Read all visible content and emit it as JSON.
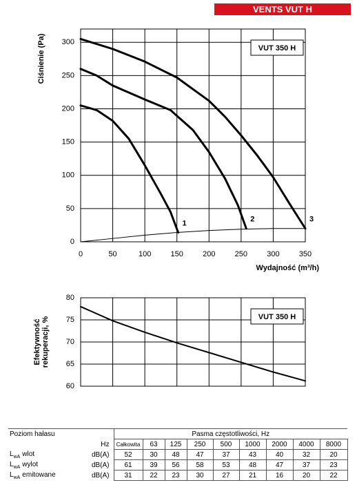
{
  "header": {
    "title": "VENTS VUT H"
  },
  "chart_data": [
    {
      "type": "line",
      "annotation": "VUT 350 H",
      "xlabel": "Wydajność (m³/h)",
      "ylabel": "Ciśnienie (Pa)",
      "xlim": [
        0,
        350
      ],
      "ylim": [
        0,
        320
      ],
      "xticks": [
        0,
        50,
        100,
        150,
        200,
        250,
        300,
        350
      ],
      "yticks": [
        0,
        50,
        100,
        150,
        200,
        250,
        300
      ],
      "grid": true,
      "show_x_tick_labels": true,
      "series": [
        {
          "name": "1",
          "color": "#000000",
          "linewidth": 3,
          "x": [
            0,
            25,
            50,
            75,
            100,
            125,
            140,
            152
          ],
          "values": [
            205,
            198,
            182,
            155,
            115,
            72,
            45,
            14
          ]
        },
        {
          "name": "2",
          "color": "#000000",
          "linewidth": 3,
          "x": [
            0,
            25,
            50,
            100,
            140,
            175,
            200,
            225,
            245,
            258
          ],
          "values": [
            260,
            250,
            235,
            214,
            198,
            168,
            135,
            95,
            55,
            20
          ]
        },
        {
          "name": "3",
          "color": "#000000",
          "linewidth": 3,
          "x": [
            0,
            50,
            100,
            150,
            200,
            225,
            250,
            275,
            300,
            325,
            350
          ],
          "values": [
            305,
            290,
            271,
            247,
            212,
            188,
            160,
            130,
            97,
            58,
            20
          ]
        },
        {
          "color": "#000000",
          "linewidth": 1,
          "x": [
            0,
            50,
            100,
            150,
            200,
            250,
            300,
            350
          ],
          "values": [
            0,
            5,
            10,
            14,
            17,
            19,
            20,
            20
          ]
        }
      ]
    },
    {
      "type": "line",
      "annotation": "VUT 350 H",
      "ylabel": [
        "Efektywność",
        "rekuperacji, %"
      ],
      "xlim": [
        0,
        350
      ],
      "ylim": [
        60,
        80
      ],
      "xticks": [
        0,
        50,
        100,
        150,
        200,
        250,
        300,
        350
      ],
      "yticks": [
        60,
        65,
        70,
        75,
        80
      ],
      "grid": true,
      "show_x_tick_labels": false,
      "series": [
        {
          "color": "#000000",
          "linewidth": 2,
          "x": [
            0,
            50,
            100,
            150,
            200,
            250,
            300,
            350
          ],
          "values": [
            78,
            74.8,
            72.2,
            69.8,
            67.6,
            65.4,
            63.2,
            61.2
          ]
        }
      ]
    }
  ],
  "table": {
    "header": [
      "Poziom hałasu",
      "Pasma częstotliwości, Hz"
    ],
    "unit_header": "Hz",
    "columns": [
      "Całkowita",
      63,
      125,
      250,
      500,
      1000,
      2000,
      4000,
      8000
    ],
    "rows": [
      {
        "symbol": "L",
        "subscript": "wA",
        "name": "wlot",
        "unit": "dB(A)",
        "values": [
          52,
          30,
          48,
          47,
          37,
          43,
          40,
          32,
          20
        ]
      },
      {
        "symbol": "L",
        "subscript": "wA",
        "name": "wylot",
        "unit": "dB(A)",
        "values": [
          61,
          39,
          56,
          58,
          53,
          48,
          47,
          37,
          23
        ]
      },
      {
        "symbol": "L",
        "subscript": "wA",
        "name": "emitowane",
        "unit": "dB(A)",
        "values": [
          31,
          22,
          23,
          30,
          27,
          21,
          16,
          20,
          22
        ]
      }
    ]
  }
}
